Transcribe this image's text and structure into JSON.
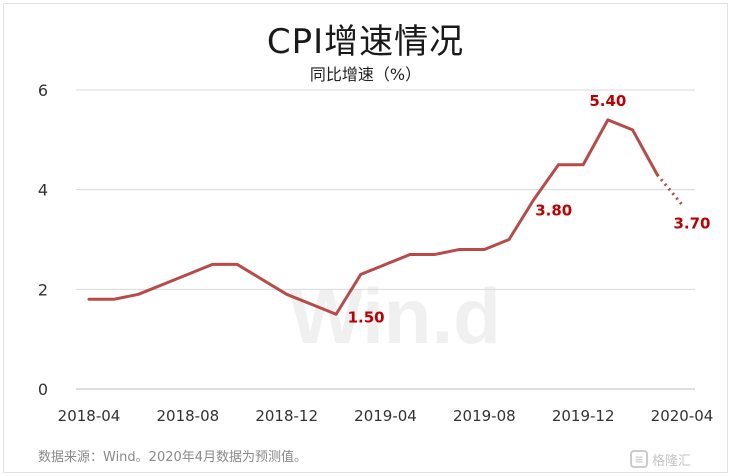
{
  "title": "CPI增速情况",
  "subtitle": "同比增速（%）",
  "source_note": "数据来源：Wind。2020年4月数据为预测值。",
  "watermark": "Win.d",
  "logo_text": "格隆汇",
  "logo_icon": "stacked-book-logo-icon",
  "colors": {
    "line": "#b94a48",
    "label": "#c00000",
    "grid": "#d9d9d9",
    "axis_text": "#333333"
  },
  "chart_data": {
    "type": "line",
    "title": "CPI增速情况",
    "ylabel": "同比增速（%）",
    "ylim": [
      0,
      6
    ],
    "yticks": [
      0,
      2,
      4,
      6
    ],
    "grid": "horizontal",
    "x": [
      "2018-04",
      "2018-05",
      "2018-06",
      "2018-07",
      "2018-08",
      "2018-09",
      "2018-10",
      "2018-11",
      "2018-12",
      "2019-01",
      "2019-02",
      "2019-03",
      "2019-04",
      "2019-05",
      "2019-06",
      "2019-07",
      "2019-08",
      "2019-09",
      "2019-10",
      "2019-11",
      "2019-12",
      "2020-01",
      "2020-02",
      "2020-03",
      "2020-04"
    ],
    "xtick_labels": [
      "2018-04",
      "2018-08",
      "2018-12",
      "2019-04",
      "2019-08",
      "2019-12",
      "2020-04"
    ],
    "series": [
      {
        "values": [
          1.8,
          1.8,
          1.9,
          2.1,
          2.3,
          2.5,
          2.5,
          2.2,
          1.9,
          1.7,
          1.5,
          2.3,
          2.5,
          2.7,
          2.7,
          2.8,
          2.8,
          3.0,
          3.8,
          4.5,
          4.5,
          5.4,
          5.2,
          4.3,
          3.7
        ],
        "forecast_from_index": 23
      }
    ],
    "annotations": [
      {
        "x": "2019-02",
        "value": 1.5,
        "text": "1.50"
      },
      {
        "x": "2019-10",
        "value": 3.8,
        "text": "3.80"
      },
      {
        "x": "2020-01",
        "value": 5.4,
        "text": "5.40"
      },
      {
        "x": "2020-04",
        "value": 3.7,
        "text": "3.70"
      }
    ]
  }
}
